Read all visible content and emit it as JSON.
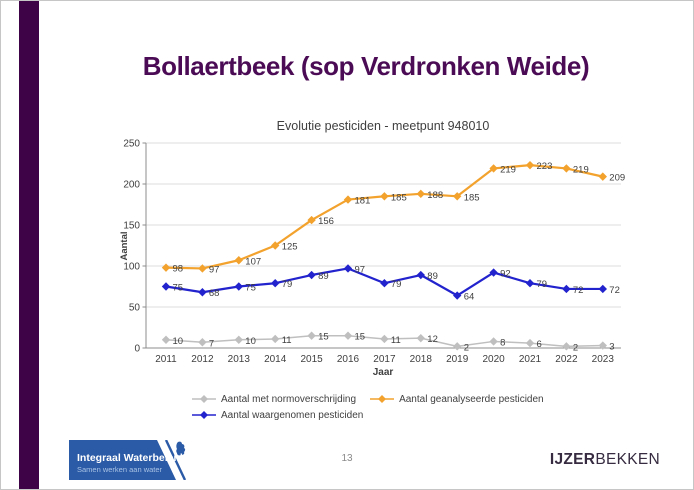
{
  "slide": {
    "title": "Bollaertbeek (sop Verdronken Weide)",
    "title_color": "#4B0C55",
    "accent_bar_color": "#3E0347",
    "page_number": "13"
  },
  "chart_data": {
    "type": "line",
    "title": "Evolutie pesticiden - meetpunt 948010",
    "xlabel": "Jaar",
    "ylabel": "Aantal",
    "ylim": [
      0,
      250
    ],
    "yticks": [
      0,
      50,
      100,
      150,
      200,
      250
    ],
    "grid": true,
    "legend_position": "bottom",
    "marker": "diamond",
    "data_labels": true,
    "categories": [
      "2011",
      "2012",
      "2013",
      "2014",
      "2015",
      "2016",
      "2017",
      "2018",
      "2019",
      "2020",
      "2021",
      "2022",
      "2023"
    ],
    "series": [
      {
        "name": "Aantal met normoverschrijding",
        "color": "#BFBFBF",
        "values": [
          10,
          7,
          10,
          11,
          15,
          15,
          11,
          12,
          2,
          8,
          6,
          2,
          3
        ]
      },
      {
        "name": "Aantal geanalyseerde pesticiden",
        "color": "#F2A22D",
        "values": [
          98,
          97,
          107,
          125,
          156,
          181,
          185,
          188,
          185,
          219,
          223,
          219,
          209
        ]
      },
      {
        "name": "Aantal waargenomen pesticiden",
        "color": "#2323CE",
        "values": [
          75,
          68,
          75,
          79,
          89,
          97,
          79,
          89,
          64,
          92,
          79,
          72,
          72
        ]
      }
    ]
  },
  "footer": {
    "logo_title": "Integraal Waterbeleid",
    "logo_subtitle": "Samen werken aan water",
    "logo_color": "#2B5AA6",
    "logo_subtitle_color": "#A9C4E6",
    "brand_bold": "IJZER",
    "brand_regular": "BEKKEN",
    "brand_color": "#362B40"
  }
}
